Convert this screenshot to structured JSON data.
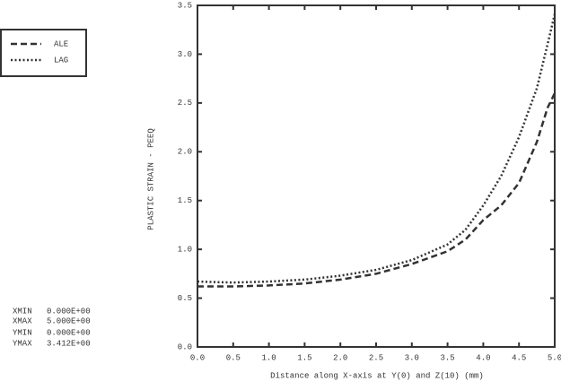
{
  "chart_data": {
    "type": "line",
    "x_label": "Distance along X-axis at Y(0) and Z(10) (mm)",
    "y_label": "PLASTIC STRAIN - PEEQ",
    "x": [
      0,
      0.5,
      1.0,
      1.5,
      2.0,
      2.5,
      3.0,
      3.5,
      3.75,
      4.0,
      4.25,
      4.5,
      4.75,
      4.9,
      5.0
    ],
    "series": [
      {
        "name": "ALE",
        "color": "#333333",
        "style": "dashed",
        "values": [
          0.62,
          0.62,
          0.63,
          0.65,
          0.69,
          0.75,
          0.85,
          0.98,
          1.1,
          1.3,
          1.45,
          1.68,
          2.1,
          2.45,
          2.6
        ]
      },
      {
        "name": "LAG",
        "color": "#333333",
        "style": "dotted",
        "values": [
          0.67,
          0.66,
          0.67,
          0.69,
          0.73,
          0.79,
          0.89,
          1.05,
          1.2,
          1.45,
          1.75,
          2.15,
          2.65,
          3.1,
          3.41
        ]
      }
    ],
    "xlim": [
      0,
      5
    ],
    "ylim": [
      0,
      3.5
    ],
    "xticks": [
      {
        "value": 0,
        "label": "0.0"
      },
      0.5,
      {
        "value": 1,
        "label": "1.0"
      },
      1.5,
      {
        "value": 2,
        "label": "2.0"
      },
      2.5,
      {
        "value": 3,
        "label": "3.0"
      },
      3.5,
      {
        "value": 4,
        "label": "4.0"
      },
      4.5,
      {
        "value": 5,
        "label": "5.0"
      }
    ],
    "yticks": [
      {
        "value": 0,
        "label": "0.0"
      },
      0.5,
      {
        "value": 1,
        "label": "1.0"
      },
      1.5,
      {
        "value": 2,
        "label": "2.0"
      },
      2.5,
      {
        "value": 3,
        "label": "3.0"
      },
      3.5
    ],
    "info": [
      {
        "label": "XMIN",
        "value": "0.000E+00"
      },
      {
        "label": "XMAX",
        "value": "5.000E+00"
      },
      {
        "label": "YMIN",
        "value": "0.000E+00"
      },
      {
        "label": "YMAX",
        "value": "3.412E+00"
      }
    ]
  }
}
